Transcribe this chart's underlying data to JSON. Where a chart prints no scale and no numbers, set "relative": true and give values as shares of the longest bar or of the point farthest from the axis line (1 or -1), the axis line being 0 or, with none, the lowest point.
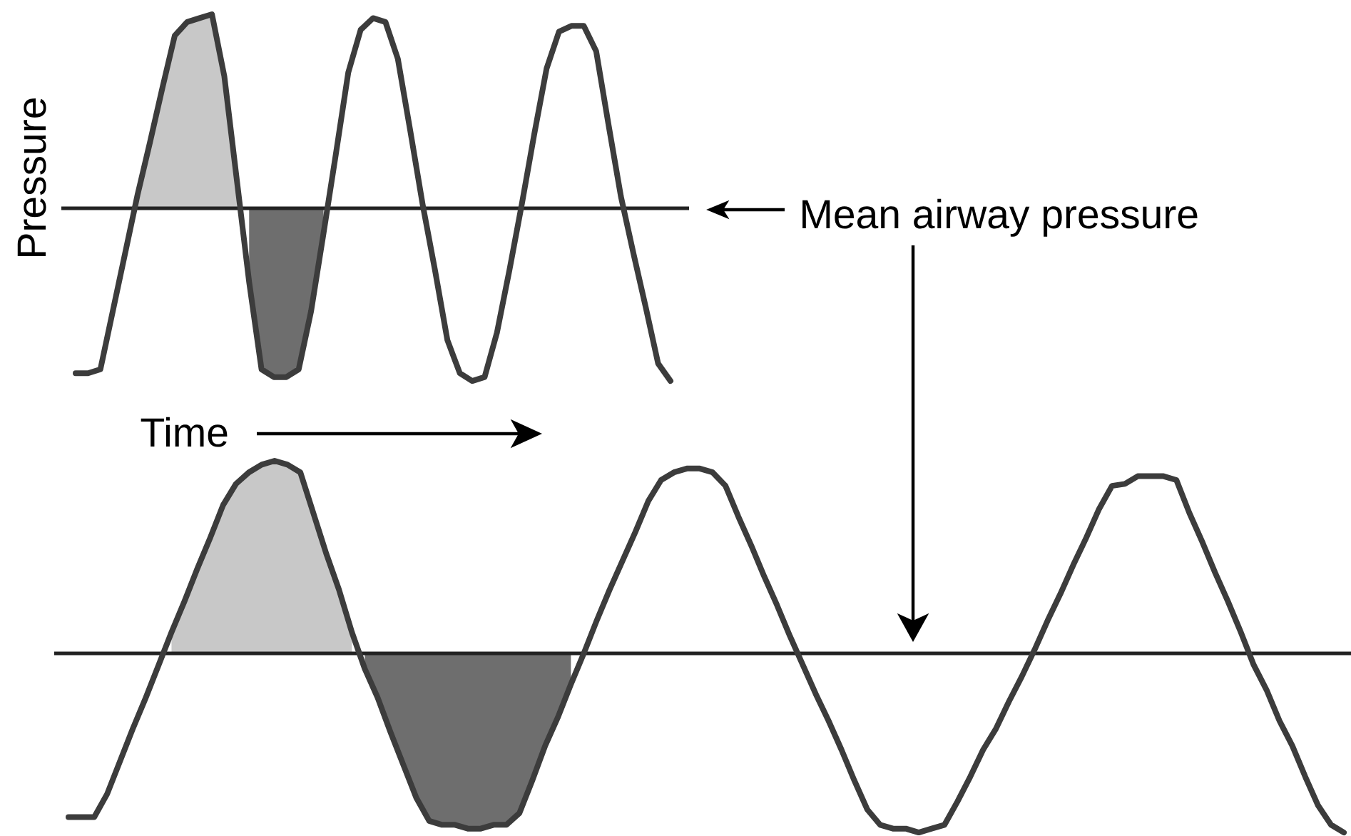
{
  "chart_data": [
    {
      "type": "line",
      "relative": true,
      "ylabel": "Pressure",
      "xlabel": "Time",
      "categories": [
        null,
        null,
        null,
        null,
        null,
        null,
        null,
        null,
        null,
        null,
        null,
        null,
        null,
        null,
        null,
        null,
        null,
        null,
        null,
        null,
        null,
        null,
        null,
        null,
        null,
        null,
        null,
        null,
        null,
        null,
        null,
        null,
        null,
        null,
        null,
        null,
        null,
        null,
        null,
        null,
        null,
        null,
        null,
        null,
        null,
        null,
        null,
        null,
        null
      ],
      "series": [
        {
          "type": "area",
          "color": "#c8c8c8",
          "values": [
            null,
            null,
            null,
            null,
            null,
            0.07,
            0.34,
            0.62,
            0.89,
            0.96,
            0.98,
            1,
            0.68,
            0.15,
            null,
            null,
            null,
            null,
            null,
            null,
            null,
            null,
            null,
            null,
            null,
            null,
            null,
            null,
            null,
            null,
            null,
            null,
            null,
            null,
            null,
            null,
            null,
            null,
            null,
            null,
            null,
            null,
            null,
            null,
            null,
            null,
            null,
            null,
            null
          ]
        },
        {
          "type": "area",
          "color": "#6e6e6e",
          "values": [
            null,
            null,
            null,
            null,
            null,
            null,
            null,
            null,
            null,
            null,
            null,
            null,
            null,
            null,
            -0.38,
            -0.83,
            -0.87,
            -0.87,
            -0.83,
            -0.53,
            -0.13,
            null,
            null,
            null,
            null,
            null,
            null,
            null,
            null,
            null,
            null,
            null,
            null,
            null,
            null,
            null,
            null,
            null,
            null,
            null,
            null,
            null,
            null,
            null,
            null,
            null,
            null,
            null,
            null
          ]
        },
        {
          "color": "#3c3c3c",
          "values": [
            -0.85,
            -0.85,
            -0.83,
            -0.53,
            -0.23,
            0.07,
            0.34,
            0.62,
            0.89,
            0.96,
            0.98,
            1,
            0.68,
            0.15,
            -0.38,
            -0.83,
            -0.87,
            -0.87,
            -0.83,
            -0.53,
            -0.13,
            0.28,
            0.7,
            0.92,
            0.98,
            0.96,
            0.77,
            0.4,
            0.02,
            -0.32,
            -0.68,
            -0.85,
            -0.89,
            -0.87,
            -0.64,
            -0.32,
            0.02,
            0.38,
            0.72,
            0.91,
            0.94,
            0.94,
            0.81,
            0.43,
            0.06,
            -0.23,
            -0.51,
            -0.8,
            -0.89
          ]
        }
      ],
      "ref_lines": [
        {
          "axis": "y",
          "value": 0,
          "label": "Mean airway pressure",
          "color": "#222222"
        }
      ]
    },
    {
      "type": "line",
      "relative": true,
      "categories": [
        null,
        null,
        null,
        null,
        null,
        null,
        null,
        null,
        null,
        null,
        null,
        null,
        null,
        null,
        null,
        null,
        null,
        null,
        null,
        null,
        null,
        null,
        null,
        null,
        null,
        null,
        null,
        null,
        null,
        null,
        null,
        null,
        null,
        null,
        null,
        null,
        null,
        null,
        null,
        null,
        null,
        null,
        null,
        null,
        null,
        null,
        null,
        null,
        null,
        null,
        null,
        null,
        null,
        null,
        null,
        null,
        null,
        null,
        null,
        null,
        null,
        null,
        null,
        null,
        null,
        null,
        null,
        null,
        null,
        null,
        null,
        null,
        null,
        null,
        null,
        null,
        null,
        null,
        null,
        null,
        null,
        null,
        null,
        null,
        null,
        null,
        null,
        null,
        null,
        null,
        null,
        null,
        null,
        null,
        null,
        null,
        null,
        null,
        null,
        null
      ],
      "series": [
        {
          "type": "area",
          "color": "#c8c8c8",
          "values": [
            null,
            null,
            null,
            null,
            null,
            null,
            null,
            null,
            0.11,
            0.27,
            0.44,
            0.6,
            0.77,
            0.88,
            0.94,
            0.98,
            1,
            0.98,
            0.94,
            0.73,
            0.52,
            0.33,
            0.11,
            null,
            null,
            null,
            null,
            null,
            null,
            null,
            null,
            null,
            null,
            null,
            null,
            null,
            null,
            null,
            null,
            null,
            null,
            null,
            null,
            null,
            null,
            null,
            null,
            null,
            null,
            null,
            null,
            null,
            null,
            null,
            null,
            null,
            null,
            null,
            null,
            null,
            null,
            null,
            null,
            null,
            null,
            null,
            null,
            null,
            null,
            null,
            null,
            null,
            null,
            null,
            null,
            null,
            null,
            null,
            null,
            null,
            null,
            null,
            null,
            null,
            null,
            null,
            null,
            null,
            null,
            null,
            null,
            null,
            null,
            null,
            null,
            null,
            null,
            null,
            null,
            null
          ]
        },
        {
          "type": "area",
          "color": "#6e6e6e",
          "values": [
            null,
            null,
            null,
            null,
            null,
            null,
            null,
            null,
            null,
            null,
            null,
            null,
            null,
            null,
            null,
            null,
            null,
            null,
            null,
            null,
            null,
            null,
            null,
            -0.08,
            -0.23,
            -0.41,
            -0.58,
            -0.75,
            -0.87,
            -0.89,
            -0.89,
            -0.91,
            -0.91,
            -0.89,
            -0.89,
            -0.83,
            -0.66,
            -0.48,
            -0.33,
            -0.16,
            null,
            null,
            null,
            null,
            null,
            null,
            null,
            null,
            null,
            null,
            null,
            null,
            null,
            null,
            null,
            null,
            null,
            null,
            null,
            null,
            null,
            null,
            null,
            null,
            null,
            null,
            null,
            null,
            null,
            null,
            null,
            null,
            null,
            null,
            null,
            null,
            null,
            null,
            null,
            null,
            null,
            null,
            null,
            null,
            null,
            null,
            null,
            null,
            null,
            null,
            null,
            null,
            null,
            null,
            null,
            null,
            null,
            null,
            null,
            null
          ]
        },
        {
          "color": "#3c3c3c",
          "values": [
            -0.85,
            -0.85,
            -0.85,
            -0.73,
            -0.56,
            -0.39,
            -0.23,
            -0.06,
            0.11,
            0.27,
            0.44,
            0.6,
            0.77,
            0.88,
            0.94,
            0.98,
            1,
            0.98,
            0.94,
            0.73,
            0.52,
            0.33,
            0.11,
            -0.08,
            -0.23,
            -0.41,
            -0.58,
            -0.75,
            -0.87,
            -0.89,
            -0.89,
            -0.91,
            -0.91,
            -0.89,
            -0.89,
            -0.83,
            -0.66,
            -0.48,
            -0.33,
            -0.16,
            0,
            0.17,
            0.33,
            0.48,
            0.63,
            0.79,
            0.9,
            0.94,
            0.96,
            0.96,
            0.94,
            0.87,
            0.71,
            0.56,
            0.4,
            0.25,
            0.09,
            -0.06,
            -0.21,
            -0.35,
            -0.5,
            -0.66,
            -0.81,
            -0.89,
            -0.91,
            -0.91,
            -0.93,
            -0.91,
            -0.89,
            -0.77,
            -0.64,
            -0.5,
            -0.39,
            -0.25,
            -0.12,
            0.02,
            0.17,
            0.31,
            0.46,
            0.6,
            0.75,
            0.87,
            0.88,
            0.92,
            0.92,
            0.92,
            0.9,
            0.73,
            0.58,
            0.42,
            0.27,
            0.11,
            -0.06,
            -0.19,
            -0.35,
            -0.48,
            -0.64,
            -0.79,
            -0.89,
            -0.93
          ]
        }
      ],
      "ref_lines": [
        {
          "axis": "y",
          "value": 0,
          "color": "#222222"
        }
      ]
    }
  ]
}
